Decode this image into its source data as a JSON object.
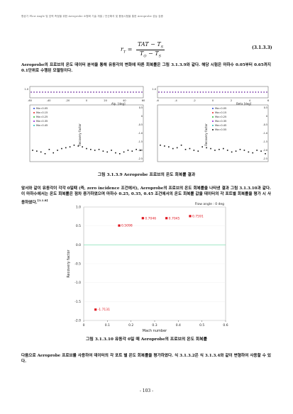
{
  "running_header": "항공기 Flow Angle 및 압력 측정을 위한 Aeroprobe 소형화 기술 개발 / 전산해석 및 풍동시험을 통한 Aeroprobe 성능 검증",
  "equation": {
    "lhs": "r",
    "lhs_sub": "T",
    "numerator": "TAT − T",
    "numerator_sub": "S",
    "denominator": "T",
    "denominator_sub1": "O",
    "denominator_mid": " − T",
    "denominator_sub2": "S",
    "number": "(3.1.3.3)"
  },
  "para1": "Aeroprobe의 프로브의 온도 데이터 분석을 통해 유동각의 변화에 따른 회복률은 그림 3.1.3.9와 같다. 해당 시험은 마하수 0.05부터 0.65까지 0.1단위로 수행된 모델링이다.",
  "fig1_caption": "그림 3.1.3.9 Aeroprobe 프로브의 온도 회복률 결과",
  "para2": "앞서와 같이 유동각이 각각 0일때 (즉, zero incidence 조건에서), Aeroprobe의 프로브의 온도 회복률을 나타낸 결과 그림 3.1.3.10과 같다. 이 마하수에서는 온도 회복률은 점차 증가하였으며 마하수 0.25, 0.35, 0.45 조건에서의 온도 회복률 값을 데이터의 각 포트별 회복률을 평가 시 사용하였다.",
  "para2_cite": "[3.1.8]",
  "fig2_caption": "그림 3.1.3.10 유동각 0일 때 Aeroprobe의 프로브의 온도 회복률",
  "para3": "다음으로 Aeroprobe 프로브를 사용하여 데이터의 각 포트 별 온도 회복률을 평가하였다. 식 3.1.3.2은 식 3.1.3.4와 같이 변형하여 사용할 수 있다.",
  "page_number": "- 103 -",
  "colors": {
    "red": "#e0141e",
    "series": [
      "#1f3fd6",
      "#e62020",
      "#20c030",
      "#8a1fd6",
      "#18b8b8",
      "#111111"
    ]
  },
  "charts": [
    {
      "type": "scatter",
      "title": "Alpha sweep",
      "xlabel": "Alp. [deg]",
      "ylabel": "Recovery factor",
      "xticks": [
        "-60",
        "-40",
        "-20",
        "0",
        "20",
        "40",
        "60"
      ],
      "yticks": [
        "1.0",
        "0.5",
        "0",
        "-0.5",
        "-1.0",
        "-1.5",
        "-2.0",
        "-2.5"
      ],
      "legend": [
        "Ma=0.05",
        "Ma=0.15",
        "Ma=0.25",
        "Ma=0.35",
        "Ma=0.45"
      ],
      "series_top": [
        0.9,
        0.92,
        0.94,
        0.96
      ],
      "series_bottom_y": [
        -2.0,
        -2.05,
        -2.1,
        -2.2,
        -1.95,
        -2.15,
        -2.0,
        -1.9,
        -1.85,
        -1.8,
        -1.7,
        -1.75,
        -1.8,
        -1.9,
        -1.95,
        -2.0,
        -1.95,
        -2.05,
        -2.1,
        -2.0,
        -2.15,
        -2.2,
        -2.1,
        -2.0,
        -2.05,
        -1.95,
        -2.0
      ]
    },
    {
      "type": "scatter",
      "title": "Beta sweep",
      "xlabel": "Beta [deg]",
      "ylabel": "Recovery factor",
      "xticks": [
        "-6",
        "-4",
        "-2",
        "0",
        "2",
        "4",
        "6"
      ],
      "yticks": [
        "1.0",
        "0.5",
        "0",
        "-0.5",
        "-1.0",
        "-1.5",
        "-2.0",
        "-2.5"
      ],
      "legend": [
        "Ma=0.05",
        "Ma=0.15",
        "Ma=0.25",
        "Ma=0.35",
        "Ma=0.45",
        "Ma=0.55"
      ],
      "series_top": [
        0.9,
        0.92,
        0.94,
        0.96
      ],
      "series_bottom_y": [
        -1.7,
        -1.75,
        -1.8,
        -1.9,
        -1.85,
        -1.7,
        -1.95,
        -1.9,
        -2.0,
        -2.05,
        -1.8,
        -1.85,
        -1.9,
        -2.0,
        -1.95,
        -1.9,
        -2.0,
        -2.1,
        -2.05,
        -1.95,
        -2.0,
        -2.1,
        -2.15,
        -2.0,
        -2.05,
        -2.2
      ]
    },
    {
      "type": "scatter",
      "title": "Flow angle : 0 deg",
      "xlabel": "Mach number",
      "ylabel": "Recovery factor",
      "xlim": [
        0,
        0.6
      ],
      "ylim": [
        -2.0,
        1.0
      ],
      "xticks": [
        0,
        0.1,
        0.2,
        0.3,
        0.4,
        0.5,
        0.6
      ],
      "yticks": [
        1.0,
        0.5,
        0,
        -0.5,
        -1.0,
        -1.5,
        -2.0
      ],
      "points": [
        {
          "x": 0.05,
          "y": -1.7131,
          "label": "-1.7131"
        },
        {
          "x": 0.15,
          "y": 0.5098,
          "label": "0.5098"
        },
        {
          "x": 0.25,
          "y": 0.7046,
          "label": "0.7046"
        },
        {
          "x": 0.35,
          "y": 0.7045,
          "label": "0.7045"
        },
        {
          "x": 0.45,
          "y": 0.7591,
          "label": "0.7591"
        }
      ]
    }
  ]
}
